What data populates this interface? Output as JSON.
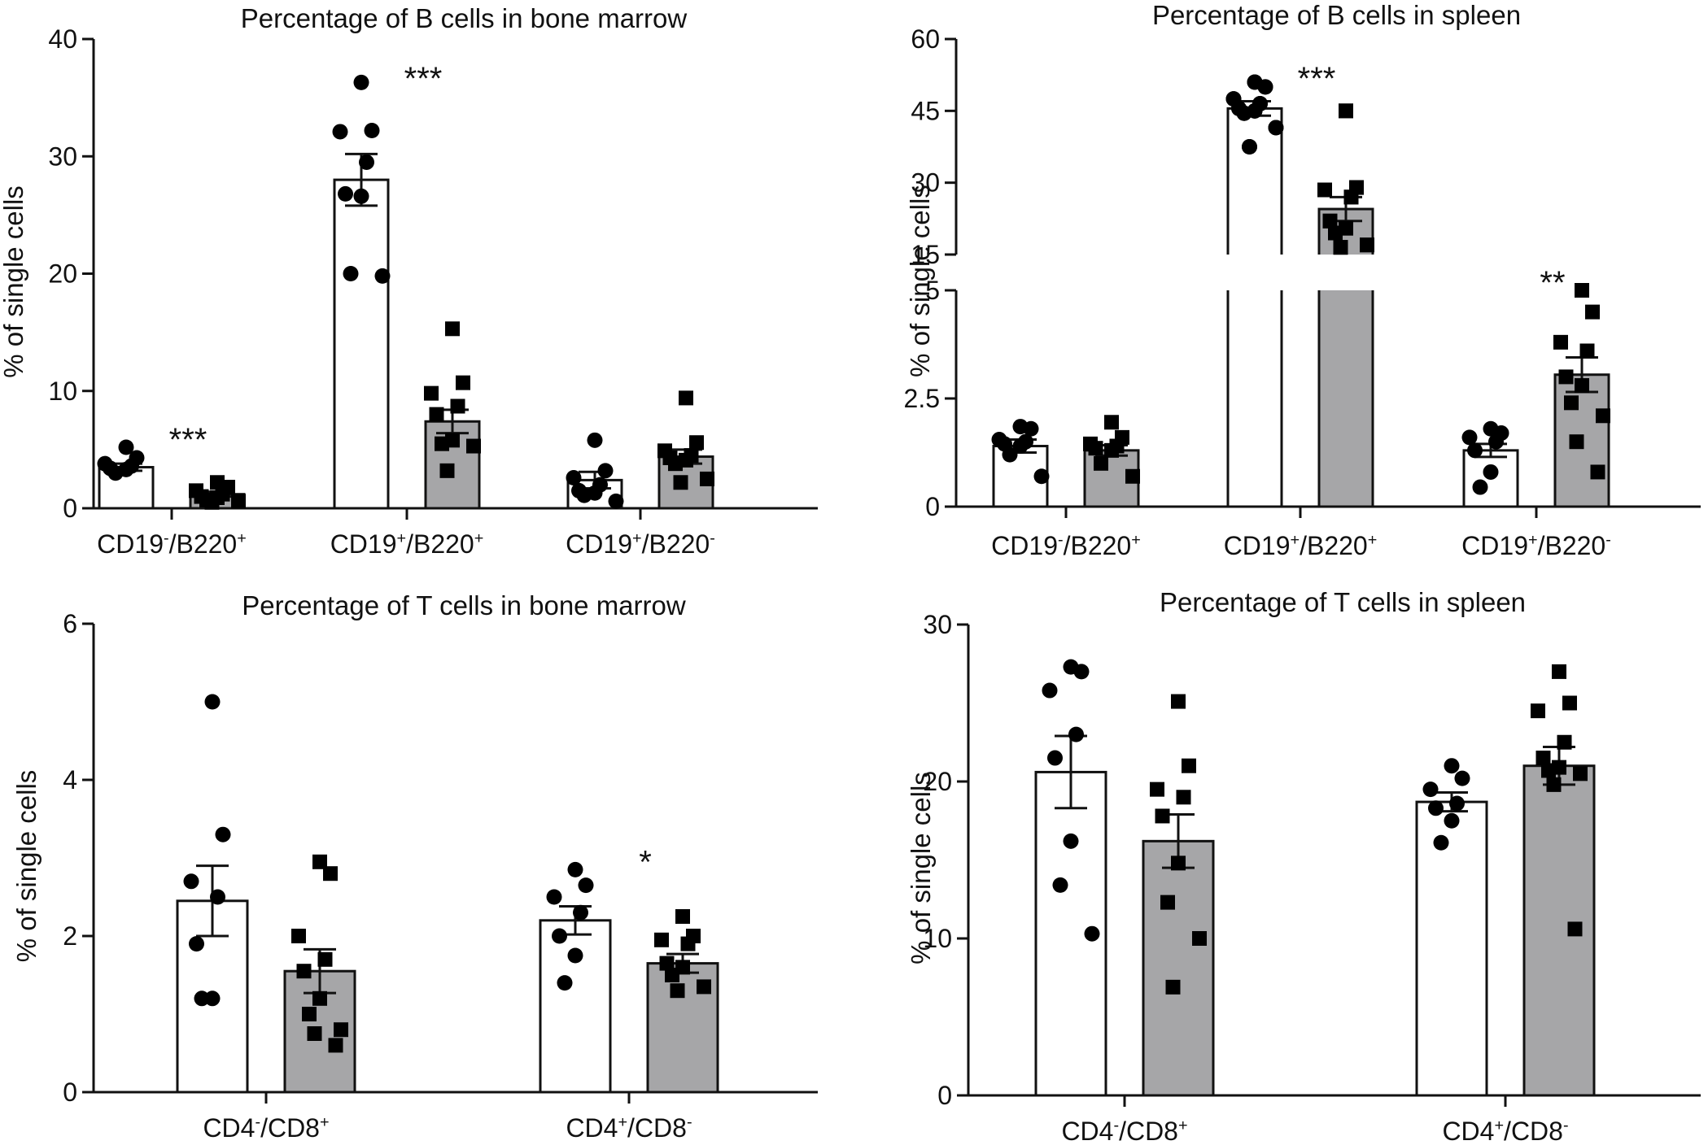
{
  "chart_data": [
    {
      "type": "bar",
      "title": "Percentage of B cells in bone marrow",
      "ylabel": "% of single cells",
      "ylim": [
        0,
        40
      ],
      "yticks": [
        0,
        10,
        20,
        30,
        40
      ],
      "categories": [
        {
          "base": "CD19",
          "sup1": "-",
          "mid": "/B220",
          "sup2": "+"
        },
        {
          "base": "CD19",
          "sup1": "+",
          "mid": "/B220",
          "sup2": "+"
        },
        {
          "base": "CD19",
          "sup1": "+",
          "mid": "/B220",
          "sup2": "-"
        }
      ],
      "significance": [
        "***",
        "***",
        ""
      ],
      "groups": [
        [
          {
            "mean": 3.5,
            "sem": 0.3,
            "points": [
              5.2,
              4.3,
              3.8,
              3.6,
              3.4,
              3.3,
              3.0
            ]
          },
          {
            "mean": 1.2,
            "sem": 0.2,
            "points": [
              2.2,
              1.8,
              1.5,
              1.2,
              1.0,
              0.9,
              0.7,
              0.6,
              0.5
            ]
          }
        ],
        [
          {
            "mean": 28.0,
            "sem": 2.2,
            "points": [
              36.3,
              32.2,
              32.1,
              29.5,
              26.8,
              26.6,
              20.0,
              19.8
            ]
          },
          {
            "mean": 7.4,
            "sem": 1.0,
            "points": [
              15.3,
              10.7,
              9.8,
              8.7,
              8.0,
              5.8,
              5.5,
              5.3,
              3.2
            ]
          }
        ],
        [
          {
            "mean": 2.4,
            "sem": 0.7,
            "points": [
              5.8,
              3.2,
              2.6,
              2.0,
              1.5,
              1.3,
              1.1,
              0.6
            ]
          },
          {
            "mean": 4.4,
            "sem": 0.6,
            "points": [
              9.4,
              5.6,
              4.9,
              4.5,
              4.3,
              4.1,
              3.8,
              2.5,
              2.2
            ]
          }
        ]
      ]
    },
    {
      "type": "bar",
      "title": "Percentage of B cells in spleen",
      "ylabel": "% of single cells",
      "broken_axis": true,
      "lower_ylim": [
        0,
        5
      ],
      "lower_yticks": [
        "0",
        "2.5",
        "5"
      ],
      "upper_ylim": [
        15,
        60
      ],
      "upper_yticks": [
        "15",
        "30",
        "45",
        "60"
      ],
      "categories": [
        {
          "base": "CD19",
          "sup1": "-",
          "mid": "/B220",
          "sup2": "+"
        },
        {
          "base": "CD19",
          "sup1": "+",
          "mid": "/B220",
          "sup2": "+"
        },
        {
          "base": "CD19",
          "sup1": "+",
          "mid": "/B220",
          "sup2": "-"
        }
      ],
      "significance": [
        "",
        "***",
        "**"
      ],
      "groups": [
        [
          {
            "mean": 1.4,
            "sem": 0.15,
            "points": [
              1.85,
              1.8,
              1.55,
              1.5,
              1.45,
              1.4,
              1.2,
              0.7
            ]
          },
          {
            "mean": 1.3,
            "sem": 0.12,
            "points": [
              1.95,
              1.6,
              1.45,
              1.4,
              1.35,
              1.3,
              1.0,
              0.7
            ]
          }
        ],
        [
          {
            "mean": 45.5,
            "sem": 1.5,
            "points": [
              51.0,
              50.0,
              47.5,
              46.5,
              45.5,
              45.0,
              44.5,
              41.5,
              37.5
            ]
          },
          {
            "mean": 24.5,
            "sem": 2.5,
            "points": [
              45.0,
              29.0,
              28.5,
              27.0,
              22.0,
              20.5,
              19.5,
              17.0,
              16.5
            ]
          }
        ],
        [
          {
            "mean": 1.3,
            "sem": 0.15,
            "points": [
              1.8,
              1.7,
              1.6,
              1.5,
              1.3,
              0.8,
              0.45
            ]
          },
          {
            "mean": 3.05,
            "sem": 0.4,
            "points": [
              5.0,
              4.5,
              3.8,
              3.6,
              3.0,
              2.8,
              2.4,
              2.1,
              1.5,
              0.8
            ]
          }
        ]
      ]
    },
    {
      "type": "bar",
      "title": "Percentage of T cells in bone marrow",
      "ylabel": "% of single cells",
      "ylim": [
        0,
        6
      ],
      "yticks": [
        0,
        2,
        4,
        6
      ],
      "categories": [
        {
          "base": "CD4",
          "sup1": "-",
          "mid": "/CD8",
          "sup2": "+"
        },
        {
          "base": "CD4",
          "sup1": "+",
          "mid": "/CD8",
          "sup2": "-"
        }
      ],
      "significance": [
        "",
        "*"
      ],
      "groups": [
        [
          {
            "mean": 2.45,
            "sem": 0.45,
            "points": [
              5.0,
              3.3,
              2.7,
              2.5,
              1.9,
              1.2,
              1.2
            ]
          },
          {
            "mean": 1.55,
            "sem": 0.28,
            "points": [
              2.95,
              2.8,
              2.0,
              1.7,
              1.55,
              1.2,
              1.0,
              0.8,
              0.75,
              0.6
            ]
          }
        ],
        [
          {
            "mean": 2.2,
            "sem": 0.18,
            "points": [
              2.85,
              2.65,
              2.5,
              2.3,
              2.0,
              1.75,
              1.4
            ]
          },
          {
            "mean": 1.65,
            "sem": 0.12,
            "points": [
              2.25,
              2.0,
              1.95,
              1.9,
              1.65,
              1.6,
              1.5,
              1.35,
              1.3
            ]
          }
        ]
      ]
    },
    {
      "type": "bar",
      "title": "Percentage of T cells in spleen",
      "ylabel": "% of single cells",
      "ylim": [
        0,
        30
      ],
      "yticks": [
        0,
        10,
        20,
        30
      ],
      "categories": [
        {
          "base": "CD4",
          "sup1": "-",
          "mid": "/CD8",
          "sup2": "+"
        },
        {
          "base": "CD4",
          "sup1": "+",
          "mid": "/CD8",
          "sup2": "-"
        }
      ],
      "significance": [
        "",
        ""
      ],
      "groups": [
        [
          {
            "mean": 20.6,
            "sem": 2.3,
            "points": [
              27.3,
              27.0,
              25.8,
              23.0,
              21.5,
              16.2,
              13.4,
              10.3
            ]
          },
          {
            "mean": 16.2,
            "sem": 1.7,
            "points": [
              25.1,
              21.0,
              19.5,
              19.0,
              17.8,
              14.8,
              12.3,
              10.0,
              6.9
            ]
          }
        ],
        [
          {
            "mean": 18.7,
            "sem": 0.6,
            "points": [
              21.0,
              20.2,
              19.5,
              18.6,
              18.3,
              17.5,
              16.1
            ]
          },
          {
            "mean": 21.0,
            "sem": 1.2,
            "points": [
              27.0,
              25.0,
              24.5,
              22.5,
              21.5,
              20.9,
              20.7,
              20.5,
              19.8,
              10.6
            ]
          }
        ]
      ]
    }
  ]
}
